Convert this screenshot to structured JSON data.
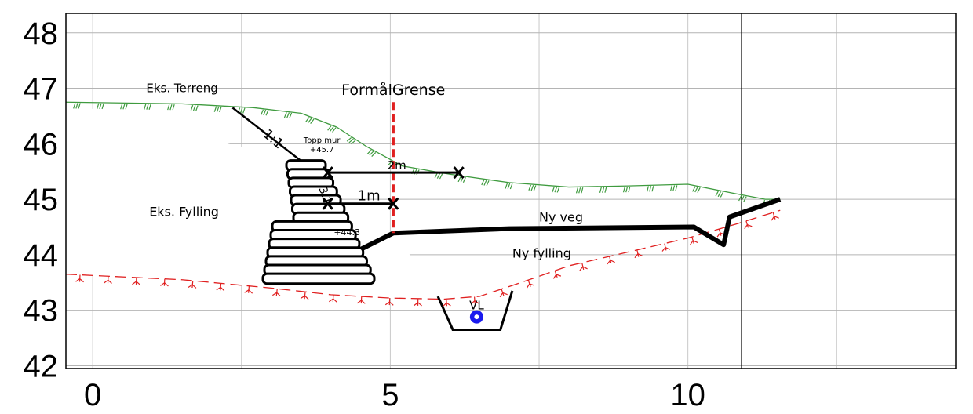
{
  "chart_data": {
    "type": "diagram",
    "title": "",
    "xlabel": "",
    "ylabel": "",
    "xlim": [
      -0.45,
      14.5
    ],
    "ylim": [
      41.95,
      48.35
    ],
    "x_ticks": [
      {
        "label": "0",
        "v": 0
      },
      {
        "label": "5",
        "v": 5
      },
      {
        "label": "10",
        "v": 10
      }
    ],
    "y_ticks": [
      {
        "label": "48",
        "v": 48
      },
      {
        "label": "47",
        "v": 47
      },
      {
        "label": "46",
        "v": 46
      },
      {
        "label": "45",
        "v": 45
      },
      {
        "label": "44",
        "v": 44
      },
      {
        "label": "43",
        "v": 43
      },
      {
        "label": "42",
        "v": 42
      }
    ],
    "grid_x": [
      0,
      2.5,
      5,
      7.5,
      10,
      12.5
    ],
    "grid_y": [
      42,
      43,
      44,
      45,
      46,
      47,
      48
    ],
    "series": [
      {
        "key": "terrain",
        "color": "#3f9b3f",
        "x": [
          -0.45,
          1.5,
          2.7,
          3.5,
          4.1,
          4.6,
          5.2,
          6.0,
          7.0,
          8.0,
          9.0,
          10.0,
          10.8,
          11.3,
          11.55
        ],
        "y": [
          46.75,
          46.72,
          46.65,
          46.55,
          46.3,
          45.95,
          45.6,
          45.45,
          45.3,
          45.22,
          45.24,
          45.27,
          45.1,
          45.0,
          45.0
        ]
      },
      {
        "key": "fill_line",
        "color": "#e02020",
        "x": [
          -0.45,
          1.5,
          3.0,
          4.0,
          5.0,
          5.9,
          6.5,
          7.2,
          8.0,
          9.0,
          10.0,
          10.8,
          11.55
        ],
        "y": [
          43.65,
          43.55,
          43.4,
          43.28,
          43.22,
          43.2,
          43.25,
          43.5,
          43.8,
          44.05,
          44.3,
          44.55,
          44.8
        ]
      },
      {
        "key": "road",
        "color": "#000000",
        "x": [
          3.95,
          4.45,
          5.05,
          7.0,
          10.1,
          10.6,
          10.7,
          11.55
        ],
        "y": [
          44.3,
          44.07,
          44.39,
          44.47,
          44.5,
          44.18,
          44.68,
          45.0
        ]
      },
      {
        "key": "slope_1_1",
        "color": "#000000",
        "x": [
          2.35,
          3.55
        ],
        "y": [
          46.65,
          45.65
        ]
      },
      {
        "key": "ditch",
        "color": "#000000",
        "x": [
          5.8,
          6.05,
          6.85,
          7.05
        ],
        "y": [
          43.25,
          42.65,
          42.65,
          43.35
        ]
      }
    ],
    "boundary": {
      "x": 5.05,
      "y_top": 46.75,
      "y_bottom": 44.39,
      "color": "#e02020"
    },
    "wall_top": {
      "x": 3.65,
      "y": 45.7
    },
    "wall_base": {
      "x": 3.4,
      "y": 43.5
    },
    "dim_2m": {
      "x1": 3.95,
      "x2": 6.15,
      "y": 45.48
    },
    "dim_1m": {
      "x1": 3.95,
      "x2": 5.05,
      "y": 44.92
    },
    "drain_pipe": {
      "x": 6.45,
      "y": 42.88,
      "color": "#1a1aee"
    },
    "annotations": [
      {
        "key": "terrain_label",
        "text": "Eks. Terreng",
        "x": 0.9,
        "y": 46.93,
        "size": 15
      },
      {
        "key": "boundary_label",
        "text": "FormålGrense",
        "x": 5.05,
        "y": 46.88,
        "size": 19,
        "color": "#e02020"
      },
      {
        "key": "slope_1_1_label",
        "text": "1:1",
        "x": 2.85,
        "y": 46.15,
        "size": 17,
        "rotate": 40
      },
      {
        "key": "wall_top_label_1",
        "text": "Topp mur",
        "x": 3.85,
        "y": 46.02,
        "size": 10
      },
      {
        "key": "wall_top_label_2",
        "text": "+45.7",
        "x": 3.85,
        "y": 45.85,
        "size": 10
      },
      {
        "key": "wall_slope_label",
        "text": "3:1",
        "x": 3.8,
        "y": 45.2,
        "size": 14,
        "rotate": 72
      },
      {
        "key": "dim_2m_label",
        "text": "2m",
        "x": 4.95,
        "y": 45.54,
        "size": 15
      },
      {
        "key": "dim_1m_label",
        "text": "1m",
        "x": 4.45,
        "y": 44.98,
        "size": 18
      },
      {
        "key": "existing_fill_label",
        "text": "Eks. Fylling",
        "x": 0.95,
        "y": 44.7,
        "size": 16
      },
      {
        "key": "level_44_3_label",
        "text": "+44.3",
        "x": 4.05,
        "y": 44.35,
        "size": 11
      },
      {
        "key": "road_label",
        "text": "Ny veg",
        "x": 7.5,
        "y": 44.6,
        "size": 16
      },
      {
        "key": "new_fill_label",
        "text": "Ny fylling",
        "x": 7.05,
        "y": 43.95,
        "size": 16
      },
      {
        "key": "drain_label",
        "text": "VL",
        "x": 6.45,
        "y": 43.02,
        "size": 15
      }
    ]
  }
}
